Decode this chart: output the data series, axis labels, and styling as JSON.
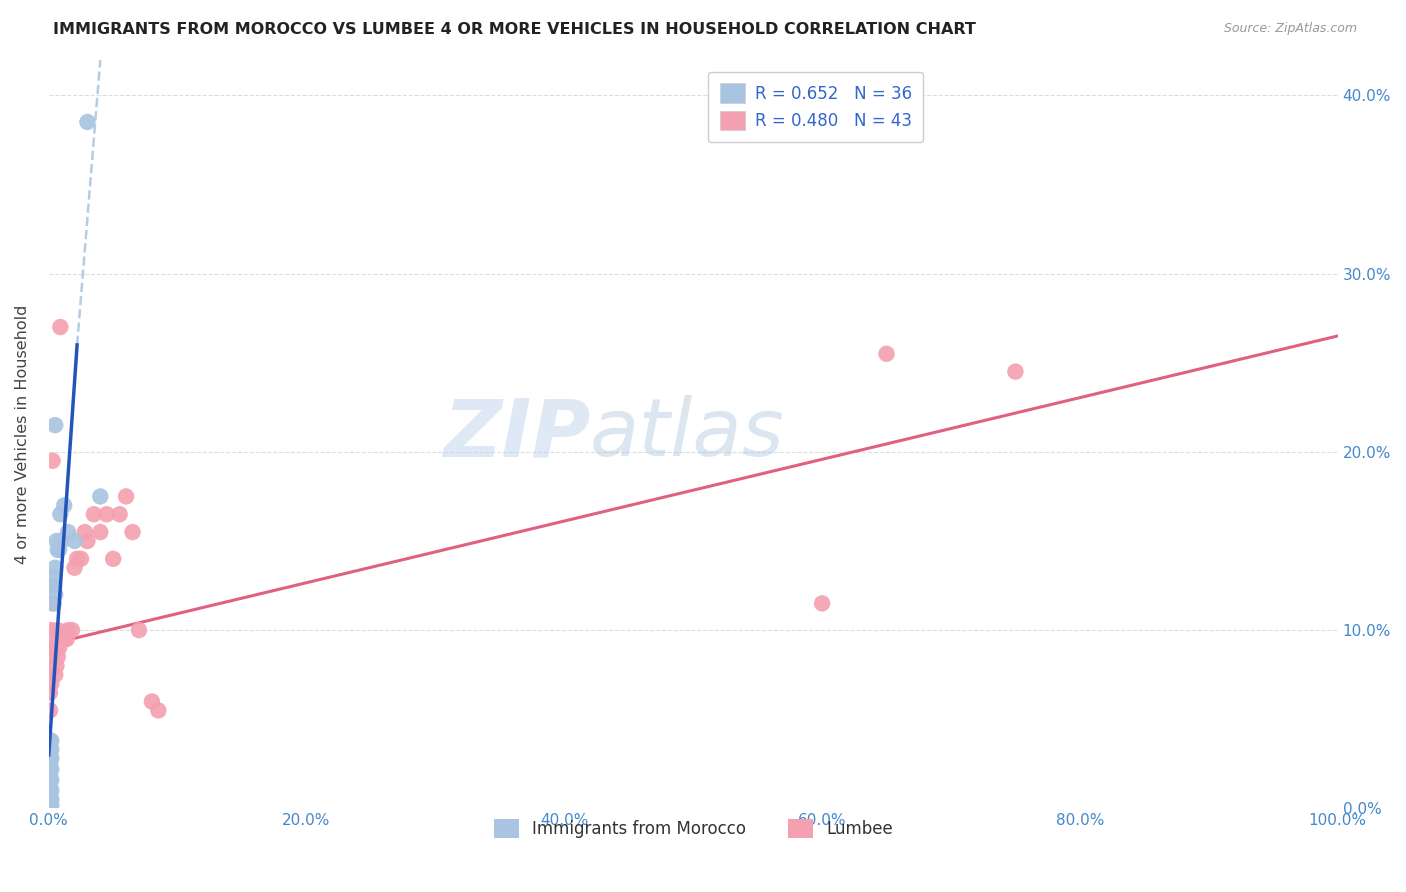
{
  "title": "IMMIGRANTS FROM MOROCCO VS LUMBEE 4 OR MORE VEHICLES IN HOUSEHOLD CORRELATION CHART",
  "source": "Source: ZipAtlas.com",
  "ylabel": "4 or more Vehicles in Household",
  "xlim": [
    0.0,
    1.0
  ],
  "ylim": [
    0.0,
    0.42
  ],
  "xticks": [
    0.0,
    0.2,
    0.4,
    0.6,
    0.8,
    1.0
  ],
  "xticklabels": [
    "0.0%",
    "20.0%",
    "40.0%",
    "60.0%",
    "80.0%",
    "100.0%"
  ],
  "yticks": [
    0.0,
    0.1,
    0.2,
    0.3,
    0.4
  ],
  "yticklabels_right": [
    "0.0%",
    "10.0%",
    "20.0%",
    "30.0%",
    "40.0%"
  ],
  "watermark_zip": "ZIP",
  "watermark_atlas": "atlas",
  "morocco_color": "#a8c4e0",
  "lumbee_color": "#f4a0b0",
  "morocco_line_color": "#2255bb",
  "lumbee_line_color": "#e06080",
  "morocco_dash_color": "#a8c4e0",
  "morocco_points": [
    [
      0.001,
      0.038
    ],
    [
      0.001,
      0.035
    ],
    [
      0.001,
      0.03
    ],
    [
      0.001,
      0.025
    ],
    [
      0.001,
      0.022
    ],
    [
      0.001,
      0.018
    ],
    [
      0.001,
      0.015
    ],
    [
      0.001,
      0.012
    ],
    [
      0.001,
      0.008
    ],
    [
      0.001,
      0.005
    ],
    [
      0.001,
      0.003
    ],
    [
      0.001,
      0.001
    ],
    [
      0.002,
      0.038
    ],
    [
      0.002,
      0.033
    ],
    [
      0.002,
      0.028
    ],
    [
      0.002,
      0.022
    ],
    [
      0.002,
      0.016
    ],
    [
      0.002,
      0.01
    ],
    [
      0.002,
      0.005
    ],
    [
      0.002,
      0.002
    ],
    [
      0.003,
      0.13
    ],
    [
      0.004,
      0.125
    ],
    [
      0.004,
      0.115
    ],
    [
      0.005,
      0.135
    ],
    [
      0.005,
      0.12
    ],
    [
      0.006,
      0.15
    ],
    [
      0.007,
      0.145
    ],
    [
      0.008,
      0.145
    ],
    [
      0.009,
      0.165
    ],
    [
      0.01,
      0.15
    ],
    [
      0.012,
      0.17
    ],
    [
      0.015,
      0.155
    ],
    [
      0.02,
      0.15
    ],
    [
      0.03,
      0.385
    ],
    [
      0.04,
      0.175
    ],
    [
      0.005,
      0.215
    ]
  ],
  "lumbee_points": [
    [
      0.001,
      0.09
    ],
    [
      0.001,
      0.075
    ],
    [
      0.001,
      0.065
    ],
    [
      0.001,
      0.055
    ],
    [
      0.002,
      0.1
    ],
    [
      0.002,
      0.085
    ],
    [
      0.002,
      0.07
    ],
    [
      0.003,
      0.195
    ],
    [
      0.003,
      0.115
    ],
    [
      0.003,
      0.09
    ],
    [
      0.004,
      0.125
    ],
    [
      0.004,
      0.09
    ],
    [
      0.005,
      0.09
    ],
    [
      0.005,
      0.075
    ],
    [
      0.006,
      0.095
    ],
    [
      0.006,
      0.08
    ],
    [
      0.007,
      0.1
    ],
    [
      0.007,
      0.085
    ],
    [
      0.008,
      0.09
    ],
    [
      0.009,
      0.27
    ],
    [
      0.01,
      0.095
    ],
    [
      0.012,
      0.095
    ],
    [
      0.014,
      0.095
    ],
    [
      0.015,
      0.1
    ],
    [
      0.018,
      0.1
    ],
    [
      0.02,
      0.135
    ],
    [
      0.022,
      0.14
    ],
    [
      0.025,
      0.14
    ],
    [
      0.028,
      0.155
    ],
    [
      0.03,
      0.15
    ],
    [
      0.035,
      0.165
    ],
    [
      0.04,
      0.155
    ],
    [
      0.045,
      0.165
    ],
    [
      0.05,
      0.14
    ],
    [
      0.055,
      0.165
    ],
    [
      0.06,
      0.175
    ],
    [
      0.065,
      0.155
    ],
    [
      0.07,
      0.1
    ],
    [
      0.08,
      0.06
    ],
    [
      0.085,
      0.055
    ],
    [
      0.6,
      0.115
    ],
    [
      0.65,
      0.255
    ],
    [
      0.75,
      0.245
    ]
  ],
  "morocco_trendline_solid": [
    [
      0.0,
      0.03
    ],
    [
      0.022,
      0.26
    ]
  ],
  "morocco_trendline_dash": [
    [
      0.022,
      0.26
    ],
    [
      0.04,
      0.42
    ]
  ],
  "lumbee_trendline": [
    [
      0.0,
      0.092
    ],
    [
      1.0,
      0.265
    ]
  ]
}
